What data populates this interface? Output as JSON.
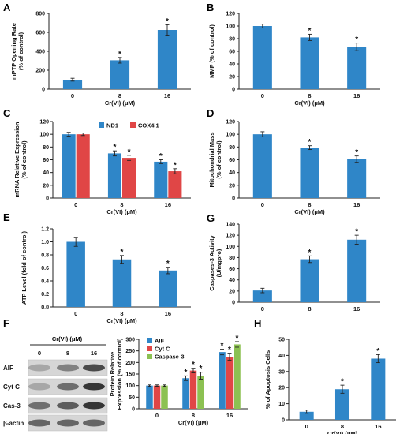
{
  "colors": {
    "blue": "#2f86c8",
    "red": "#e04646",
    "green": "#8cc152",
    "axis": "#222222",
    "text": "#111111"
  },
  "blot": {
    "label": "F",
    "header": "Cr(VI) (μM)",
    "lanes": [
      "0",
      "8",
      "16"
    ],
    "rows": [
      "AIF",
      "Cyt C",
      "Cas-3",
      "β-actin"
    ]
  },
  "chart_data": [
    {
      "id": "A",
      "type": "bar",
      "categories": [
        "0",
        "8",
        "16"
      ],
      "series": [
        {
          "values": [
            100,
            305,
            625
          ],
          "errors": [
            15,
            30,
            55
          ],
          "sig": [
            false,
            true,
            true
          ]
        }
      ],
      "ylabel": "mPTP Opening Rate\n(% of control)",
      "xlabel": "Cr(VI) (μM)",
      "ylim": [
        0,
        800
      ],
      "yticks": [
        0,
        200,
        400,
        600,
        800
      ],
      "ytick_labels": [
        "0",
        "200",
        "400",
        "600",
        "800"
      ]
    },
    {
      "id": "B",
      "type": "bar",
      "categories": [
        "0",
        "8",
        "16"
      ],
      "series": [
        {
          "values": [
            100,
            82,
            67
          ],
          "errors": [
            3,
            5,
            6
          ],
          "sig": [
            false,
            true,
            true
          ]
        }
      ],
      "ylabel": "MMP (% of control)",
      "xlabel": "Cr(VI) (μM)",
      "ylim": [
        0,
        120
      ],
      "yticks": [
        0,
        20,
        40,
        60,
        80,
        100,
        120
      ],
      "ytick_labels": [
        "0",
        "20",
        "40",
        "60",
        "80",
        "100",
        "120"
      ]
    },
    {
      "id": "C",
      "type": "bar",
      "categories": [
        "0",
        "8",
        "16"
      ],
      "series": [
        {
          "name": "ND1",
          "values": [
            100,
            70,
            57
          ],
          "errors": [
            3,
            4,
            3
          ],
          "sig": [
            false,
            true,
            true
          ]
        },
        {
          "name": "COX4l1",
          "values": [
            100,
            63,
            42
          ],
          "errors": [
            2,
            4,
            4
          ],
          "sig": [
            false,
            true,
            true
          ]
        }
      ],
      "ylabel": "mRNA Relative Expression\n(% of control)",
      "xlabel": "Cr(VI) (μM)",
      "ylim": [
        0,
        120
      ],
      "yticks": [
        0,
        20,
        40,
        60,
        80,
        100,
        120
      ],
      "ytick_labels": [
        "0",
        "20",
        "40",
        "60",
        "80",
        "100",
        "120"
      ],
      "legend": "top-right"
    },
    {
      "id": "D",
      "type": "bar",
      "categories": [
        "0",
        "8",
        "16"
      ],
      "series": [
        {
          "values": [
            100,
            79,
            61
          ],
          "errors": [
            4,
            3,
            5
          ],
          "sig": [
            false,
            true,
            true
          ]
        }
      ],
      "ylabel": "Mitochondrial Mass\n(% of control)",
      "xlabel": "Cr(VI) (μM)",
      "ylim": [
        0,
        120
      ],
      "yticks": [
        0,
        20,
        40,
        60,
        80,
        100,
        120
      ],
      "ytick_labels": [
        "0",
        "20",
        "40",
        "60",
        "80",
        "100",
        "120"
      ]
    },
    {
      "id": "E",
      "type": "bar",
      "categories": [
        "0",
        "8",
        "16"
      ],
      "series": [
        {
          "values": [
            1.0,
            0.73,
            0.56
          ],
          "errors": [
            0.07,
            0.06,
            0.05
          ],
          "sig": [
            false,
            true,
            true
          ]
        }
      ],
      "ylabel": "ATP Level (fold of control)",
      "xlabel": "Cr(VI) (μM)",
      "ylim": [
        0,
        1.2
      ],
      "yticks": [
        0,
        0.2,
        0.4,
        0.6,
        0.8,
        1.0,
        1.2
      ],
      "ytick_labels": [
        "0.0",
        "0.2",
        "0.4",
        "0.6",
        "0.8",
        "1.0",
        "1.2"
      ]
    },
    {
      "id": "G",
      "type": "bar",
      "categories": [
        "0",
        "8",
        "16"
      ],
      "series": [
        {
          "values": [
            21,
            77,
            112
          ],
          "errors": [
            4,
            6,
            8
          ],
          "sig": [
            false,
            true,
            true
          ]
        }
      ],
      "ylabel": "Caspases-3 Activity\n(U/mgpro)",
      "xlabel": "",
      "ylim": [
        0,
        140
      ],
      "yticks": [
        0,
        20,
        40,
        60,
        80,
        100,
        120,
        140
      ],
      "ytick_labels": [
        "0",
        "20",
        "40",
        "60",
        "80",
        "100",
        "120",
        "140"
      ]
    },
    {
      "id": "F",
      "type": "bar",
      "categories": [
        "0",
        "8",
        "16"
      ],
      "series": [
        {
          "name": "AIF",
          "values": [
            100,
            132,
            245
          ],
          "errors": [
            3,
            10,
            12
          ],
          "sig": [
            false,
            true,
            true
          ]
        },
        {
          "name": "Cyt C",
          "values": [
            100,
            165,
            225
          ],
          "errors": [
            3,
            10,
            15
          ],
          "sig": [
            false,
            true,
            true
          ]
        },
        {
          "name": "Caspase-3",
          "values": [
            100,
            143,
            278
          ],
          "errors": [
            3,
            15,
            12
          ],
          "sig": [
            false,
            true,
            true
          ]
        }
      ],
      "ylabel": "Protein Relative\nExpression (% of control)",
      "xlabel": "Cr(VI) (μM)",
      "ylim": [
        0,
        300
      ],
      "yticks": [
        0,
        50,
        100,
        150,
        200,
        250,
        300
      ],
      "ytick_labels": [
        "0",
        "50",
        "100",
        "150",
        "200",
        "250",
        "300"
      ],
      "legend": "top-left"
    },
    {
      "id": "H",
      "type": "bar",
      "categories": [
        "0",
        "8",
        "16"
      ],
      "series": [
        {
          "values": [
            5,
            19,
            38
          ],
          "errors": [
            1,
            2.5,
            2.5
          ],
          "sig": [
            false,
            true,
            true
          ]
        }
      ],
      "ylabel": "% of Apoptosis Cells",
      "xlabel": "Cr(VI) (μM)",
      "ylim": [
        0,
        50
      ],
      "yticks": [
        0,
        10,
        20,
        30,
        40,
        50
      ],
      "ytick_labels": [
        "0",
        "10",
        "20",
        "30",
        "40",
        "50"
      ]
    }
  ]
}
